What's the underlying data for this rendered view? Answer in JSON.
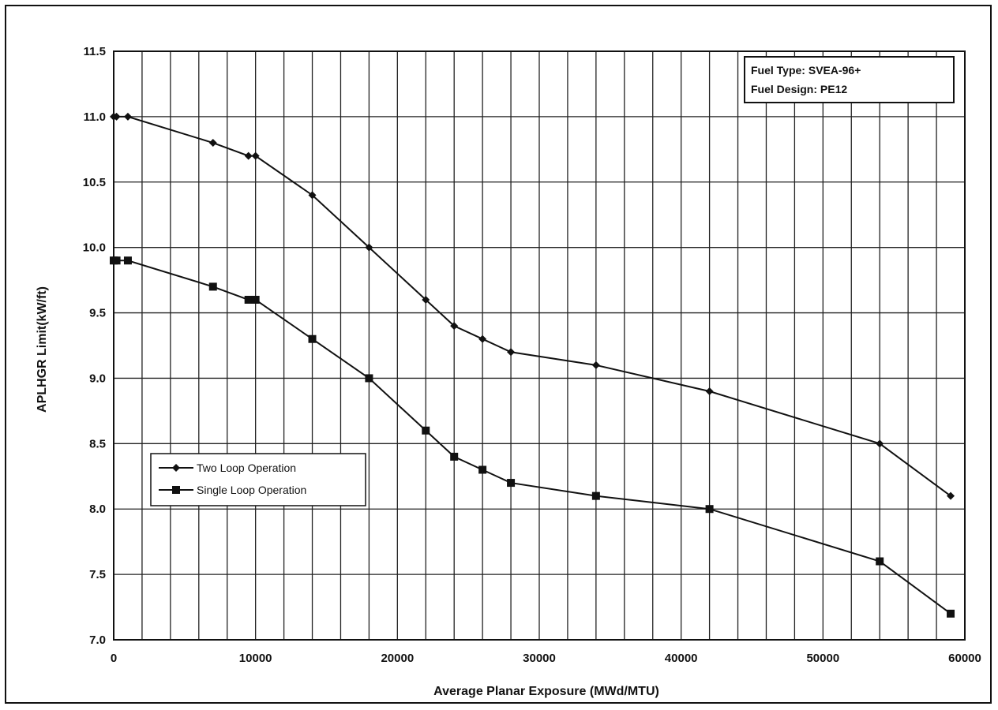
{
  "chart_data": {
    "type": "line",
    "title": "",
    "xlabel": "Average Planar Exposure (MWd/MTU)",
    "ylabel": "APLHGR Limit(kW/ft)",
    "xlim": [
      0,
      60000
    ],
    "ylim": [
      7.0,
      11.5
    ],
    "xticks": [
      "0",
      "10000",
      "20000",
      "30000",
      "40000",
      "50000",
      "60000"
    ],
    "yticks": [
      "7.0",
      "7.5",
      "8.0",
      "8.5",
      "9.0",
      "9.5",
      "10.0",
      "10.5",
      "11.0",
      "11.5"
    ],
    "grid": true,
    "legend_position": "lower-left",
    "info_box": [
      "Fuel Type: SVEA-96+",
      "Fuel Design: PE12"
    ],
    "series": [
      {
        "name": "Two Loop Operation",
        "marker": "diamond",
        "color": "#111111",
        "x": [
          0,
          200,
          1000,
          7000,
          9500,
          10000,
          14000,
          18000,
          22000,
          24000,
          26000,
          28000,
          34000,
          42000,
          54000,
          59000
        ],
        "y": [
          11.0,
          11.0,
          11.0,
          10.8,
          10.7,
          10.7,
          10.4,
          10.0,
          9.6,
          9.4,
          9.3,
          9.2,
          9.1,
          8.9,
          8.5,
          8.1
        ]
      },
      {
        "name": "Single Loop Operation",
        "marker": "square",
        "color": "#111111",
        "x": [
          0,
          200,
          1000,
          7000,
          9500,
          10000,
          14000,
          18000,
          22000,
          24000,
          26000,
          28000,
          34000,
          42000,
          54000,
          59000
        ],
        "y": [
          9.9,
          9.9,
          9.9,
          9.7,
          9.6,
          9.6,
          9.3,
          9.0,
          8.6,
          8.4,
          8.3,
          8.2,
          8.1,
          8.0,
          7.6,
          7.2
        ]
      }
    ]
  }
}
